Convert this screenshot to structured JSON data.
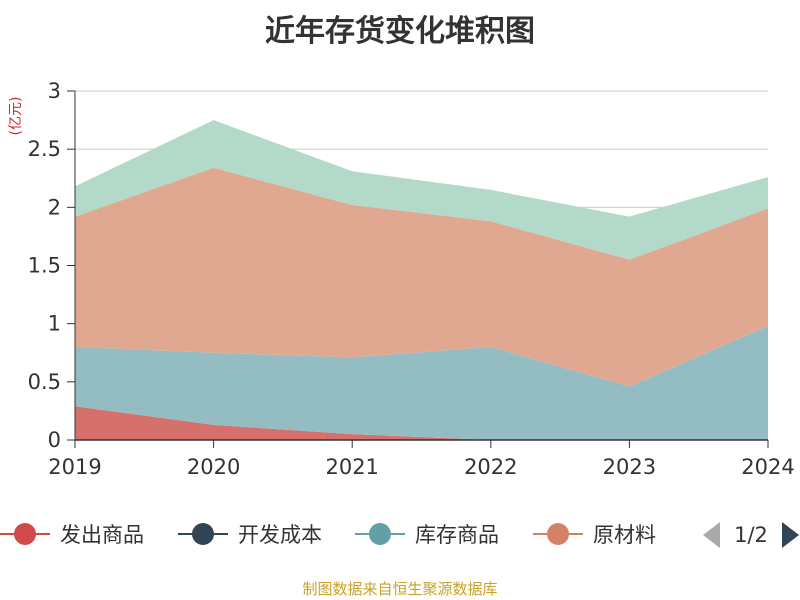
{
  "chart_data": {
    "type": "area",
    "stacked": true,
    "title": "近年存货变化堆积图",
    "ylabel": "(亿元)",
    "xlabel": "",
    "x": [
      "2019",
      "2020",
      "2021",
      "2022",
      "2023",
      "2024"
    ],
    "ylim": [
      0,
      3
    ],
    "yticks": [
      "0",
      "0.5",
      "1",
      "1.5",
      "2",
      "2.5",
      "3"
    ],
    "grid": true,
    "legend_position": "bottom",
    "series": [
      {
        "name": "发出商品",
        "color": "#d14a4a",
        "fill": "#d6706c",
        "values": [
          0.29,
          0.13,
          0.05,
          0.0,
          0.0,
          0.0
        ]
      },
      {
        "name": "开发成本",
        "color": "#2f4554",
        "fill": "#2f4554",
        "values": [
          0.0,
          0.0,
          0.0,
          0.0,
          0.0,
          0.0
        ]
      },
      {
        "name": "库存商品",
        "color": "#61a0a8",
        "fill": "#93bdc3",
        "values": [
          0.51,
          0.62,
          0.66,
          0.8,
          0.46,
          0.98
        ]
      },
      {
        "name": "原材料",
        "color": "#d48265",
        "fill": "#e0a891",
        "values": [
          1.12,
          1.59,
          1.31,
          1.08,
          1.09,
          1.01
        ]
      },
      {
        "name": "",
        "color": "#91c7ae",
        "fill": "#b3d9c8",
        "values": [
          0.26,
          0.41,
          0.29,
          0.27,
          0.37,
          0.27
        ]
      }
    ]
  },
  "legend": {
    "page_indicator": "1/2",
    "prev_icon": "triangle-left-icon",
    "next_icon": "triangle-right-icon"
  },
  "footer": {
    "source": "制图数据来自恒生聚源数据库"
  }
}
